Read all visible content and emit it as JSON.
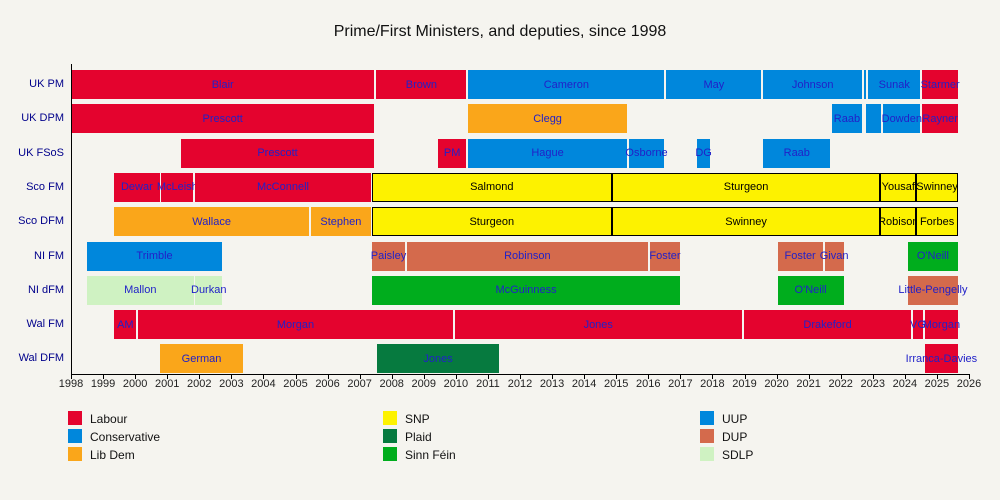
{
  "title": "Prime/First Ministers, and deputies, since 1998",
  "colors": {
    "Labour": "#e4032e",
    "Conservative": "#0087dc",
    "Lib Dem": "#faa61a",
    "SNP": "#fdf200",
    "Plaid": "#067a3f",
    "Sinn Féin": "#00ad1d",
    "UUP": "#0087dc",
    "DUP": "#d46a4c",
    "SDLP": "#cff2c2",
    "bar_label": "#2121c8",
    "bar_label_on_yellow": "#000000",
    "row_label": "#00008b",
    "background": "#f5f4ef"
  },
  "chart_data": {
    "type": "timeline",
    "title": "Prime/First Ministers, and deputies, since 1998",
    "x_axis": {
      "start": 1998,
      "end": 2026,
      "ticks": [
        1998,
        1999,
        2000,
        2001,
        2002,
        2003,
        2004,
        2005,
        2006,
        2007,
        2008,
        2009,
        2010,
        2011,
        2012,
        2013,
        2014,
        2015,
        2016,
        2017,
        2018,
        2019,
        2020,
        2021,
        2022,
        2023,
        2024,
        2025,
        2026
      ]
    },
    "rows": [
      {
        "label": "UK PM",
        "segments": [
          {
            "name": "Blair",
            "party": "Labour",
            "start": 1998.0,
            "end": 2007.46
          },
          {
            "name": "Brown",
            "party": "Labour",
            "start": 2007.52,
            "end": 2010.33
          },
          {
            "name": "Cameron",
            "party": "Conservative",
            "start": 2010.39,
            "end": 2016.5
          },
          {
            "name": "May",
            "party": "Conservative",
            "start": 2016.56,
            "end": 2019.53
          },
          {
            "name": "Johnson",
            "party": "Conservative",
            "start": 2019.59,
            "end": 2022.66
          },
          {
            "name": "",
            "party": "Conservative",
            "start": 2022.72,
            "end": 2022.8
          },
          {
            "name": "Sunak",
            "party": "Conservative",
            "start": 2022.86,
            "end": 2024.48
          },
          {
            "name": "Starmer",
            "party": "Labour",
            "start": 2024.54,
            "end": 2025.66
          }
        ]
      },
      {
        "label": "UK DPM",
        "segments": [
          {
            "name": "Prescott",
            "party": "Labour",
            "start": 1998.0,
            "end": 2007.46
          },
          {
            "name": "Clegg",
            "party": "Lib Dem",
            "start": 2010.39,
            "end": 2015.33
          },
          {
            "name": "Raab",
            "party": "Conservative",
            "start": 2021.73,
            "end": 2022.66
          },
          {
            "name": "",
            "party": "Conservative",
            "start": 2022.79,
            "end": 2023.26
          },
          {
            "name": "Dowden",
            "party": "Conservative",
            "start": 2023.33,
            "end": 2024.48
          },
          {
            "name": "Rayner",
            "party": "Labour",
            "start": 2024.54,
            "end": 2025.66
          }
        ]
      },
      {
        "label": "UK FSoS",
        "segments": [
          {
            "name": "Prescott",
            "party": "Labour",
            "start": 2001.42,
            "end": 2007.46
          },
          {
            "name": "PM",
            "party": "Labour",
            "start": 2009.44,
            "end": 2010.33
          },
          {
            "name": "Hague",
            "party": "Conservative",
            "start": 2010.39,
            "end": 2015.33
          },
          {
            "name": "Osborne",
            "party": "Conservative",
            "start": 2015.39,
            "end": 2016.5
          },
          {
            "name": "DG",
            "party": "Conservative",
            "start": 2017.52,
            "end": 2017.93
          },
          {
            "name": "Raab",
            "party": "Conservative",
            "start": 2019.59,
            "end": 2021.67
          }
        ]
      },
      {
        "label": "Sco FM",
        "segments": [
          {
            "name": "Dewar",
            "party": "Labour",
            "start": 1999.35,
            "end": 2000.76
          },
          {
            "name": "McLeish",
            "party": "Labour",
            "start": 2000.82,
            "end": 2001.81
          },
          {
            "name": "McConnell",
            "party": "Labour",
            "start": 2001.87,
            "end": 2007.35
          },
          {
            "name": "Salmond",
            "party": "SNP",
            "start": 2007.38,
            "end": 2014.86
          },
          {
            "name": "Sturgeon",
            "party": "SNP",
            "start": 2014.86,
            "end": 2023.24
          },
          {
            "name": "Yousaf",
            "party": "SNP",
            "start": 2023.24,
            "end": 2024.35
          },
          {
            "name": "Swinney",
            "party": "SNP",
            "start": 2024.35,
            "end": 2025.66
          }
        ]
      },
      {
        "label": "Sco DFM",
        "segments": [
          {
            "name": "Wallace",
            "party": "Lib Dem",
            "start": 1999.35,
            "end": 2005.42
          },
          {
            "name": "Stephen",
            "party": "Lib Dem",
            "start": 2005.48,
            "end": 2007.35
          },
          {
            "name": "Sturgeon",
            "party": "SNP",
            "start": 2007.38,
            "end": 2014.86
          },
          {
            "name": "Swinney",
            "party": "SNP",
            "start": 2014.86,
            "end": 2023.24
          },
          {
            "name": "Robison",
            "party": "SNP",
            "start": 2023.24,
            "end": 2024.35
          },
          {
            "name": "Forbes",
            "party": "SNP",
            "start": 2024.35,
            "end": 2025.66
          }
        ]
      },
      {
        "label": "NI FM",
        "segments": [
          {
            "name": "Trimble",
            "party": "UUP",
            "start": 1998.5,
            "end": 2002.71
          },
          {
            "name": "Paisley",
            "party": "DUP",
            "start": 2007.38,
            "end": 2008.42
          },
          {
            "name": "Robinson",
            "party": "DUP",
            "start": 2008.48,
            "end": 2015.98
          },
          {
            "name": "Foster",
            "party": "DUP",
            "start": 2016.04,
            "end": 2017.0
          },
          {
            "name": "Foster",
            "party": "DUP",
            "start": 2020.03,
            "end": 2021.44
          },
          {
            "name": "Givan",
            "party": "DUP",
            "start": 2021.5,
            "end": 2022.09
          },
          {
            "name": "O'Neill",
            "party": "Sinn Féin",
            "start": 2024.09,
            "end": 2025.66
          }
        ]
      },
      {
        "label": "NI dFM",
        "segments": [
          {
            "name": "Mallon",
            "party": "SDLP",
            "start": 1998.5,
            "end": 2001.82
          },
          {
            "name": "Durkan",
            "party": "SDLP",
            "start": 2001.88,
            "end": 2002.71
          },
          {
            "name": "McGuinness",
            "party": "Sinn Féin",
            "start": 2007.38,
            "end": 2017.0
          },
          {
            "name": "O'Neill",
            "party": "Sinn Féin",
            "start": 2020.03,
            "end": 2022.09
          },
          {
            "name": "Little-Pengelly",
            "party": "DUP",
            "start": 2024.09,
            "end": 2025.66
          }
        ]
      },
      {
        "label": "Wal FM",
        "segments": [
          {
            "name": "AM",
            "party": "Labour",
            "start": 1999.35,
            "end": 2000.04
          },
          {
            "name": "Morgan",
            "party": "Labour",
            "start": 2000.1,
            "end": 2009.9
          },
          {
            "name": "Jones",
            "party": "Labour",
            "start": 2009.96,
            "end": 2018.92
          },
          {
            "name": "Drakeford",
            "party": "Labour",
            "start": 2018.98,
            "end": 2024.2
          },
          {
            "name": "VG",
            "party": "Labour",
            "start": 2024.26,
            "end": 2024.56
          },
          {
            "name": "Morgan",
            "party": "Labour",
            "start": 2024.62,
            "end": 2025.66
          }
        ]
      },
      {
        "label": "Wal DFM",
        "segments": [
          {
            "name": "German",
            "party": "Lib Dem",
            "start": 2000.79,
            "end": 2003.35
          },
          {
            "name": "Jones",
            "party": "Plaid",
            "start": 2007.54,
            "end": 2011.35
          },
          {
            "name": "Irranca-Davies",
            "party": "Labour",
            "start": 2024.62,
            "end": 2025.66
          }
        ]
      },
      {
        "label_list_note": ""
      }
    ],
    "legend_position": "bottom",
    "grid": false
  },
  "legend": {
    "columns": [
      [
        "Labour",
        "Conservative",
        "Lib Dem"
      ],
      [
        "SNP",
        "Plaid",
        "Sinn Féin"
      ],
      [
        "UUP",
        "DUP",
        "SDLP"
      ]
    ]
  }
}
